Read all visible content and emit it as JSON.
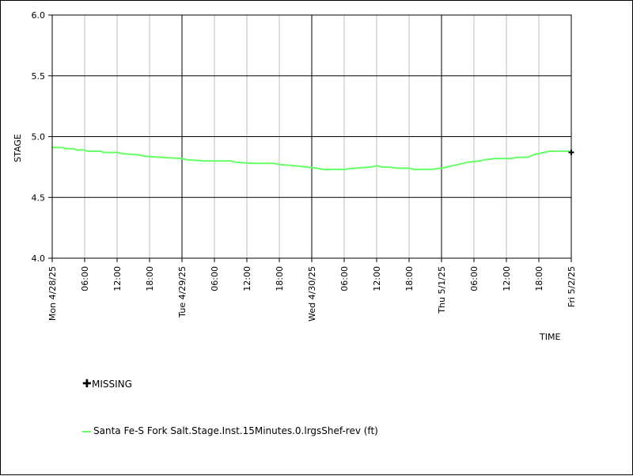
{
  "chart_data": {
    "type": "line",
    "ylabel": "STAGE",
    "xlabel": "TIME",
    "ylim": [
      4.0,
      6.0
    ],
    "y_ticks": [
      "4.0",
      "4.5",
      "5.0",
      "5.5",
      "6.0"
    ],
    "x_range_hours": [
      0,
      96
    ],
    "grid": true,
    "day_ticks": [
      {
        "hour": 0,
        "label": "Mon 4/28/25"
      },
      {
        "hour": 24,
        "label": "Tue 4/29/25"
      },
      {
        "hour": 48,
        "label": "Wed 4/30/25"
      },
      {
        "hour": 72,
        "label": "Thu 5/1/25"
      },
      {
        "hour": 96,
        "label": "Fri 5/2/25"
      }
    ],
    "hour_ticks": [
      {
        "hour": 6,
        "label": "06:00"
      },
      {
        "hour": 12,
        "label": "12:00"
      },
      {
        "hour": 18,
        "label": "18:00"
      },
      {
        "hour": 30,
        "label": "06:00"
      },
      {
        "hour": 36,
        "label": "12:00"
      },
      {
        "hour": 42,
        "label": "18:00"
      },
      {
        "hour": 54,
        "label": "06:00"
      },
      {
        "hour": 60,
        "label": "12:00"
      },
      {
        "hour": 66,
        "label": "18:00"
      },
      {
        "hour": 78,
        "label": "06:00"
      },
      {
        "hour": 84,
        "label": "12:00"
      },
      {
        "hour": 90,
        "label": "18:00"
      }
    ],
    "series": [
      {
        "name": "Santa Fe-S Fork Salt.Stage.Inst.15Minutes.0.lrgsShef-rev (ft)",
        "color": "#66ff66",
        "points": [
          [
            0,
            4.91
          ],
          [
            2,
            4.91
          ],
          [
            2.5,
            4.9
          ],
          [
            4,
            4.9
          ],
          [
            4.5,
            4.89
          ],
          [
            6,
            4.89
          ],
          [
            6.5,
            4.88
          ],
          [
            9,
            4.88
          ],
          [
            9.5,
            4.87
          ],
          [
            12,
            4.87
          ],
          [
            13,
            4.86
          ],
          [
            16,
            4.85
          ],
          [
            17,
            4.84
          ],
          [
            20,
            4.83
          ],
          [
            24,
            4.82
          ],
          [
            25,
            4.81
          ],
          [
            28,
            4.8
          ],
          [
            33,
            4.8
          ],
          [
            34,
            4.79
          ],
          [
            37,
            4.78
          ],
          [
            41,
            4.78
          ],
          [
            42,
            4.77
          ],
          [
            45,
            4.76
          ],
          [
            47,
            4.75
          ],
          [
            49,
            4.74
          ],
          [
            50,
            4.73
          ],
          [
            53,
            4.73
          ],
          [
            54,
            4.73
          ],
          [
            56,
            4.74
          ],
          [
            59,
            4.75
          ],
          [
            60,
            4.76
          ],
          [
            61,
            4.75
          ],
          [
            62,
            4.75
          ],
          [
            64,
            4.74
          ],
          [
            66,
            4.74
          ],
          [
            67,
            4.73
          ],
          [
            70,
            4.73
          ],
          [
            72,
            4.74
          ],
          [
            73,
            4.75
          ],
          [
            74,
            4.76
          ],
          [
            75,
            4.77
          ],
          [
            77,
            4.79
          ],
          [
            79,
            4.8
          ],
          [
            80,
            4.81
          ],
          [
            82,
            4.82
          ],
          [
            85,
            4.82
          ],
          [
            86,
            4.83
          ],
          [
            88,
            4.83
          ],
          [
            89,
            4.85
          ],
          [
            91,
            4.87
          ],
          [
            92,
            4.88
          ],
          [
            96,
            4.88
          ]
        ]
      }
    ],
    "missing_points": [
      [
        96,
        4.87
      ]
    ]
  },
  "legend": {
    "missing_label": "MISSING",
    "series_label": "Santa Fe-S Fork Salt.Stage.Inst.15Minutes.0.lrgsShef-rev (ft)",
    "series_color": "#66ff66"
  }
}
